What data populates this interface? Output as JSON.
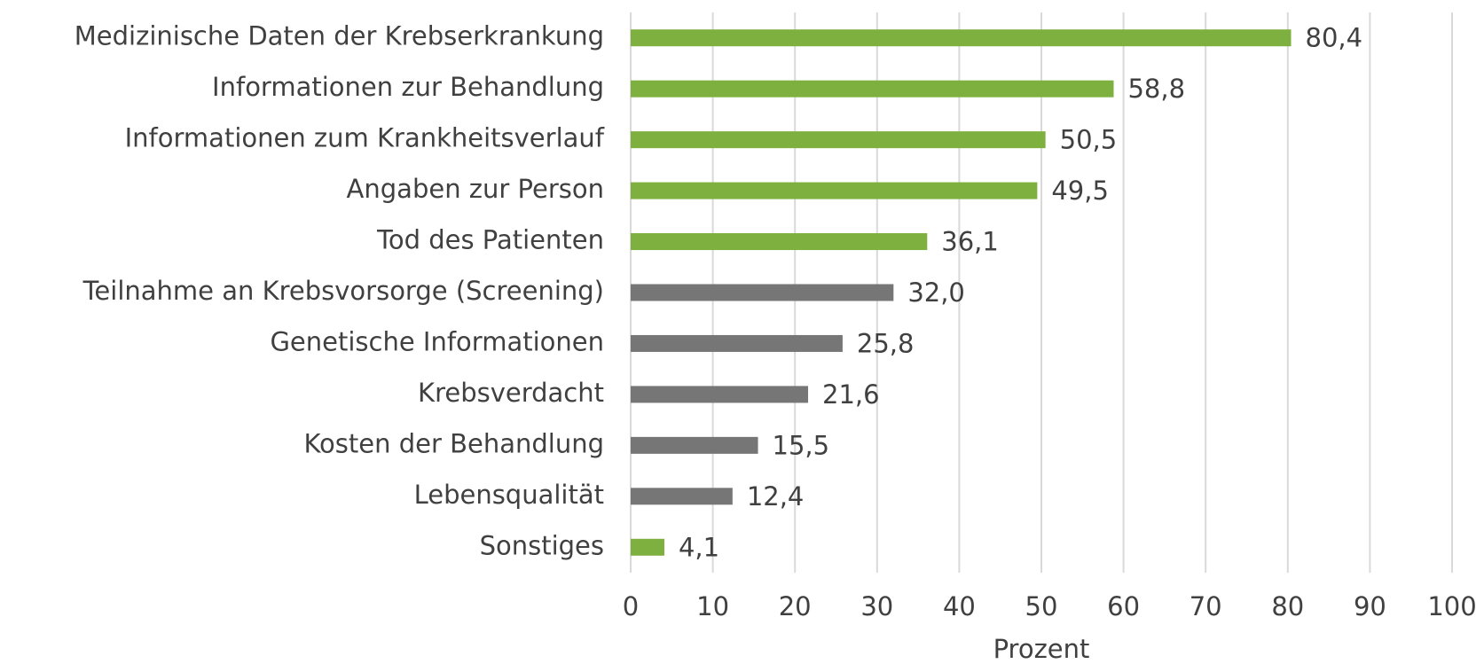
{
  "chart_data": {
    "type": "barh",
    "categories": [
      "Medizinische Daten der Krebserkrankung",
      "Informationen zur Behandlung",
      "Informationen zum Krankheitsverlauf",
      "Angaben zur Person",
      "Tod des Patienten",
      "Teilnahme an Krebsvorsorge (Screening)",
      "Genetische Informationen",
      "Krebsverdacht",
      "Kosten der Behandlung",
      "Lebensqualität",
      "Sonstiges"
    ],
    "values": [
      80.4,
      58.8,
      50.5,
      49.5,
      36.1,
      32.0,
      25.8,
      21.6,
      15.5,
      12.4,
      4.1
    ],
    "value_labels": [
      "80,4",
      "58,8",
      "50,5",
      "49,5",
      "36,1",
      "32,0",
      "25,8",
      "21,6",
      "15,5",
      "12,4",
      "4,1"
    ],
    "colors": [
      "#7db03e",
      "#7db03e",
      "#7db03e",
      "#7db03e",
      "#7db03e",
      "#767676",
      "#767676",
      "#767676",
      "#767676",
      "#767676",
      "#7db03e"
    ],
    "xlabel": "Prozent",
    "xlim": [
      0,
      100
    ],
    "xticks": [
      0,
      10,
      20,
      30,
      40,
      50,
      60,
      70,
      80,
      90,
      100
    ],
    "grid": true
  }
}
